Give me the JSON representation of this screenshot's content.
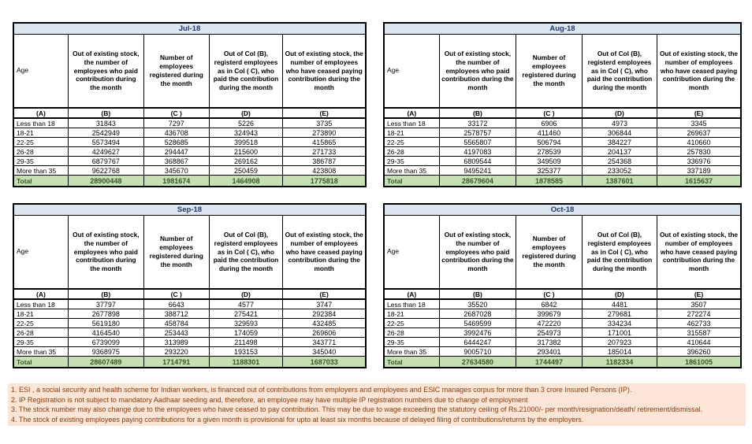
{
  "columns": {
    "age_label": "Age",
    "col_b": "Out of existing stock, the number of employees who paid contribution during the month",
    "col_c": "Number of employees registered during the month",
    "col_d": "Out of Col (B), registerd employees as in Col ( C), who paid the contribution during the month",
    "col_e": "Out of existing stock, the number of  employees who have ceased paying contribution during the month",
    "letters": [
      "(A)",
      "(B)",
      "(C )",
      "(D)",
      "(E)"
    ]
  },
  "age_groups": [
    "Less than 18",
    "18-21",
    "22-25",
    "26-28",
    "29-35",
    "More than 35"
  ],
  "total_label": "Total",
  "months": [
    {
      "title": "Jul-18",
      "rows": [
        [
          31843,
          7297,
          5226,
          3735
        ],
        [
          2542949,
          436708,
          324943,
          273890
        ],
        [
          5573494,
          528685,
          399518,
          415865
        ],
        [
          4249627,
          294447,
          215600,
          271733
        ],
        [
          6879767,
          368867,
          269162,
          386787
        ],
        [
          9622768,
          345670,
          250459,
          423808
        ]
      ],
      "total": [
        28900448,
        1981674,
        1464908,
        1775818
      ]
    },
    {
      "title": "Aug-18",
      "rows": [
        [
          33172,
          6906,
          4973,
          3345
        ],
        [
          2578757,
          411460,
          306844,
          269637
        ],
        [
          5565807,
          506794,
          384227,
          410660
        ],
        [
          4197083,
          278539,
          204137,
          257830
        ],
        [
          6809544,
          349509,
          254368,
          336976
        ],
        [
          9495241,
          325377,
          233052,
          337189
        ]
      ],
      "total": [
        28679604,
        1878585,
        1387601,
        1615637
      ]
    },
    {
      "title": "Sep-18",
      "rows": [
        [
          37797,
          6643,
          4577,
          3747
        ],
        [
          2677898,
          388712,
          275421,
          292384
        ],
        [
          5619180,
          458784,
          329593,
          432485
        ],
        [
          4164540,
          253443,
          174059,
          269606
        ],
        [
          6739099,
          313989,
          211498,
          343771
        ],
        [
          9368975,
          293220,
          193153,
          345040
        ]
      ],
      "total": [
        28607489,
        1714791,
        1188301,
        1687033
      ]
    },
    {
      "title": "Oct-18",
      "rows": [
        [
          35520,
          6842,
          4481,
          3507
        ],
        [
          2687028,
          399679,
          279681,
          272274
        ],
        [
          5469599,
          472220,
          334234,
          462733
        ],
        [
          3992476,
          254973,
          171001,
          315587
        ],
        [
          6444247,
          317382,
          207923,
          410644
        ],
        [
          9005710,
          293401,
          185014,
          396260
        ]
      ],
      "total": [
        27634580,
        1744497,
        1182334,
        1861005
      ]
    }
  ],
  "footnotes": [
    "1. ESI , a social security and health scheme for Indian workers, is financed out of contributions from employers and employees and ESIC manages corpus for more than 3 crore Insured Persons (IP).",
    "2. IP Registration is not subject to mandatory Aadhaar seeding and, therefore, an employee may have multiple IP registration numbers due to change of employment",
    "3. The stock number may also change due to the employees who have ceased to pay contribution. This may  be due to wage exceeding the statutory ceiling of  Rs.21000/- per month/resignation/death/ retirement/dismissal.",
    "4. The stock of existing employees paying contributions for a given month is provisional for upto at least six months because of delayed filing of contributions/returns by the employers."
  ],
  "colors": {
    "month_header_bg": "#DCE6F1",
    "month_title_text": "#1F3864",
    "total_row_bg": "#C6E0B4",
    "total_row_text": "#375623",
    "footnote_bg": "#FBE5D6",
    "footnote_text": "#843C0C",
    "border": "#000000"
  },
  "layout": {
    "col_widths": [
      "15.5%",
      "21.5%",
      "18.5%",
      "21%",
      "23.5%"
    ]
  }
}
